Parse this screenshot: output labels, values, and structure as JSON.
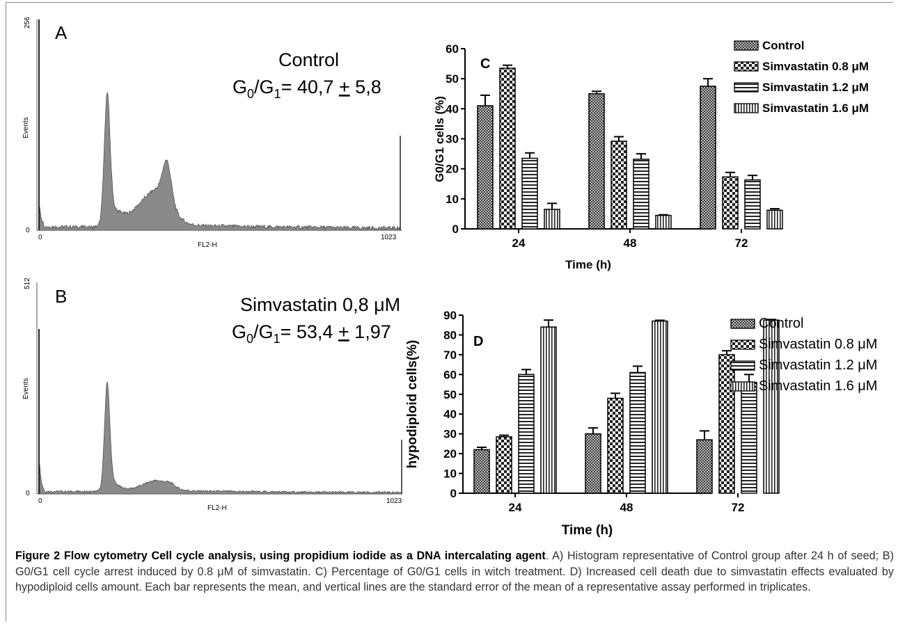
{
  "panel_a": {
    "letter": "A",
    "condition": "Control",
    "stat_main": "G",
    "stat_sub0": "0",
    "stat_slash": "/G",
    "stat_sub1": "1",
    "stat_eq": "= 40,7 ",
    "stat_pm": "+",
    "stat_err": " 5,8",
    "y_max_label": "256",
    "y_zero_label": "0",
    "y_axis_label": "Events",
    "x_axis_label": "FL2-H",
    "x_min_label": "0",
    "x_max_label": "1023"
  },
  "panel_b": {
    "letter": "B",
    "condition": "Simvastatin 0,8 μM",
    "stat_main": "G",
    "stat_sub0": "0",
    "stat_slash": "/G",
    "stat_sub1": "1",
    "stat_eq": "= 53,4 ",
    "stat_pm": "+",
    "stat_err": " 1,97",
    "y_max_label": "512",
    "y_zero_label": "0",
    "y_axis_label": "Events",
    "x_axis_label": "FL2-H",
    "x_min_label": "0",
    "x_max_label": "1023"
  },
  "chart_data": [
    {
      "panel": "C",
      "type": "bar",
      "ylabel": "G0/G1 cells (%)",
      "xlabel": "Time (h)",
      "categories": [
        "24",
        "48",
        "72"
      ],
      "ylim": [
        0,
        60
      ],
      "yticks": [
        0,
        10,
        20,
        30,
        40,
        50,
        60
      ],
      "legend_position": "top-right",
      "series": [
        {
          "name": "Control",
          "pattern": "fine-crosshatch",
          "values": [
            41,
            45,
            47.5
          ],
          "errors": [
            3.5,
            0.8,
            2.5
          ]
        },
        {
          "name": "Simvastatin 0.8 μM",
          "pattern": "checker",
          "values": [
            53.5,
            29.2,
            17.3
          ],
          "errors": [
            1.0,
            1.5,
            1.5
          ]
        },
        {
          "name": "Simvastatin 1.2 μM",
          "pattern": "horizontal-lines",
          "values": [
            23.5,
            23.2,
            16.3
          ],
          "errors": [
            1.8,
            1.8,
            1.5
          ]
        },
        {
          "name": "Simvastatin 1.6 μM",
          "pattern": "vertical-lines",
          "values": [
            6.5,
            4.5,
            6.2
          ],
          "errors": [
            2.0,
            0.2,
            0.5
          ]
        }
      ]
    },
    {
      "panel": "D",
      "type": "bar",
      "ylabel": "hypodiploid cells(%)",
      "xlabel": "Time (h)",
      "categories": [
        "24",
        "48",
        "72"
      ],
      "ylim": [
        0,
        90
      ],
      "yticks": [
        0,
        10,
        20,
        30,
        40,
        50,
        60,
        70,
        80,
        90
      ],
      "legend_position": "top-right",
      "series": [
        {
          "name": "Control",
          "pattern": "fine-crosshatch",
          "values": [
            22,
            30,
            27
          ],
          "errors": [
            1.2,
            3.0,
            4.5
          ]
        },
        {
          "name": "Simvastatin 0.8 μM",
          "pattern": "checker",
          "values": [
            28.5,
            48,
            70
          ],
          "errors": [
            0.8,
            2.5,
            2.0
          ]
        },
        {
          "name": "Simvastatin 1.2 μM",
          "pattern": "horizontal-lines",
          "values": [
            60,
            61,
            56
          ],
          "errors": [
            2.5,
            3.2,
            4.0
          ]
        },
        {
          "name": "Simvastatin 1.6 μM",
          "pattern": "vertical-lines",
          "values": [
            84,
            87,
            87.5
          ],
          "errors": [
            3.5,
            0.4,
            0.3
          ]
        }
      ]
    }
  ],
  "caption": {
    "title": "Figure 2 Flow cytometry Cell cycle analysis, using propidium iodide as a DNA intercalating agent",
    "body": ". A) Histogram representative of Control group after 24 h of seed; B) G0/G1 cell cycle arrest induced by 0.8 μM of simvastatin. C) Percentage of G0/G1 cells in witch treatment. D) Increased cell death due to simvastatin effects evaluated by hypodiploid cells amount. Each bar represents the mean, and vertical lines are the standard error of the mean of a representative assay performed in triplicates."
  }
}
